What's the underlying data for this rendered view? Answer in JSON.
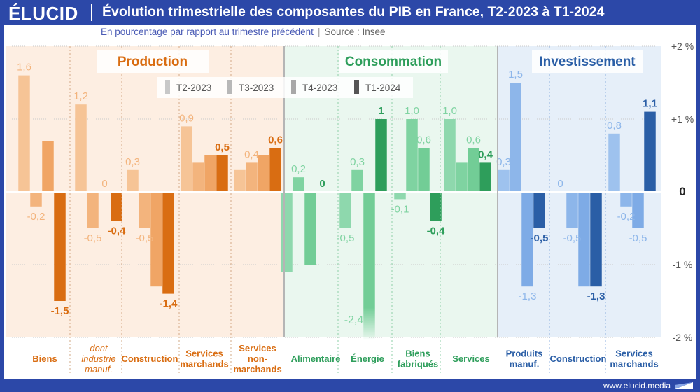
{
  "header": {
    "logo": "ÉLUCID",
    "title": "Évolution trimestrielle des composantes du PIB en France, T2-2023 à T1-2024",
    "subtitle": "En pourcentage par rapport au trimestre précédent",
    "source": "Source : Insee"
  },
  "footer": {
    "url": "www.elucid.media"
  },
  "colors": {
    "background": "#2c48a8",
    "production": [
      "#f6c496",
      "#f3b47d",
      "#f0a565",
      "#d96d12"
    ],
    "consommation": [
      "#8ed8ad",
      "#7fd3a1",
      "#72cd96",
      "#2e9e5b"
    ],
    "investissement": [
      "#9ec2ee",
      "#8db6ea",
      "#7eabe6",
      "#2a5ea6"
    ],
    "production_bg": "#fdeee2",
    "consommation_bg": "#eaf7ef",
    "investissement_bg": "#e6eff9"
  },
  "chart_data": {
    "type": "bar",
    "title": "Évolution trimestrielle des composantes du PIB en France, T2-2023 à T1-2024",
    "subtitle": "En pourcentage par rapport au trimestre précédent",
    "ylim": [
      -2,
      2
    ],
    "yticks": [
      "+2 %",
      "+1 %",
      "0",
      "-1 %",
      "-2 %"
    ],
    "legend": [
      "T2-2023",
      "T3-2023",
      "T4-2023",
      "T1-2024"
    ],
    "legend_placement": "top-center",
    "groups": [
      {
        "name": "Production",
        "categories": [
          {
            "label": "Biens",
            "values": [
              1.6,
              -0.2,
              0.7,
              -1.5
            ],
            "labels": [
              "1,6",
              "-0,2",
              "",
              "-1,5"
            ]
          },
          {
            "label": "dont industrie manuf.",
            "italic": true,
            "values": [
              1.2,
              -0.5,
              0.0,
              -0.4
            ],
            "labels": [
              "1,2",
              "-0,5",
              "0",
              "-0,4"
            ]
          },
          {
            "label": "Construction",
            "values": [
              0.3,
              -0.5,
              -1.3,
              -1.4
            ],
            "labels": [
              "0,3",
              "-0,5",
              "",
              "-1,4"
            ]
          },
          {
            "label": "Services marchands",
            "values": [
              0.9,
              0.4,
              0.5,
              0.5
            ],
            "labels": [
              "0,9",
              "",
              "",
              "0,5"
            ]
          },
          {
            "label": "Services non-marchands",
            "values": [
              0.3,
              0.4,
              0.5,
              0.6
            ],
            "labels": [
              "",
              "0,4",
              "",
              "0,6"
            ]
          }
        ]
      },
      {
        "name": "Consommation",
        "categories": [
          {
            "label": "Alimentaire",
            "values": [
              -1.1,
              0.2,
              -1.0,
              0.0
            ],
            "labels": [
              "",
              "0,2",
              "",
              "0"
            ]
          },
          {
            "label": "Énergie",
            "values": [
              -0.5,
              0.3,
              -2.4,
              1.0
            ],
            "labels": [
              "-0,5",
              "0,3",
              "-2,4",
              "1"
            ]
          },
          {
            "label": "Biens fabriqués",
            "values": [
              -0.1,
              1.0,
              0.6,
              -0.4
            ],
            "labels": [
              "-0,1",
              "1,0",
              "0,6",
              "-0,4"
            ]
          },
          {
            "label": "Services",
            "values": [
              1.0,
              0.4,
              0.6,
              0.4
            ],
            "labels": [
              "1,0",
              "",
              "0,6",
              "0,4"
            ]
          }
        ]
      },
      {
        "name": "Investissement",
        "categories": [
          {
            "label": "Produits manuf.",
            "values": [
              0.3,
              1.5,
              -1.3,
              -0.5
            ],
            "labels": [
              "0,3",
              "1,5",
              "-1,3",
              "-0,5"
            ]
          },
          {
            "label": "Construction",
            "values": [
              0.0,
              -0.5,
              -1.3,
              -1.3
            ],
            "labels": [
              "0",
              "-0,5",
              "",
              "-1,3"
            ]
          },
          {
            "label": "Services marchands",
            "values": [
              0.8,
              -0.2,
              -0.5,
              1.1
            ],
            "labels": [
              "0,8",
              "-0,2",
              "-0,5",
              "1,1"
            ]
          }
        ]
      }
    ]
  }
}
